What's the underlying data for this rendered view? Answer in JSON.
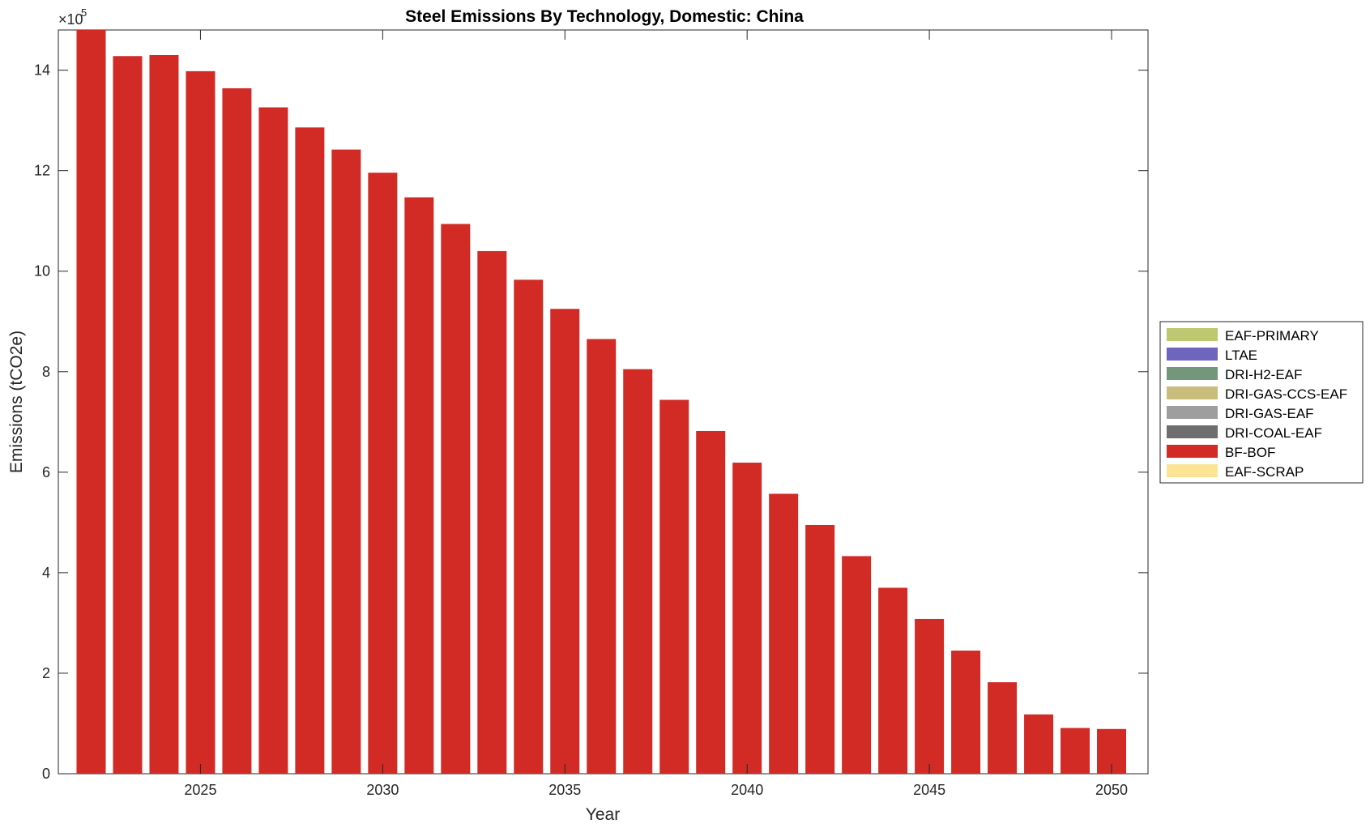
{
  "chart_data": {
    "type": "bar",
    "title": "Steel Emissions By Technology, Domestic: China",
    "xlabel": "Year",
    "ylabel": "Emissions (tCO2e)",
    "y_exponent_label": "×10",
    "y_exponent_power": "5",
    "y_scale_factor": 100000,
    "xlim": [
      2021.1,
      2051
    ],
    "ylim": [
      0,
      1480000
    ],
    "x_ticks": [
      2025,
      2030,
      2035,
      2040,
      2045,
      2050
    ],
    "x_tick_labels": [
      "2025",
      "2030",
      "2035",
      "2040",
      "2045",
      "2050"
    ],
    "y_ticks": [
      0,
      200000,
      400000,
      600000,
      800000,
      1000000,
      1200000,
      1400000
    ],
    "y_tick_labels": [
      "0",
      "2",
      "4",
      "6",
      "8",
      "10",
      "12",
      "14"
    ],
    "grid": false,
    "legend_position": "outside-right",
    "x": [
      2022,
      2023,
      2024,
      2025,
      2026,
      2027,
      2028,
      2029,
      2030,
      2031,
      2032,
      2033,
      2034,
      2035,
      2036,
      2037,
      2038,
      2039,
      2040,
      2041,
      2042,
      2043,
      2044,
      2045,
      2046,
      2047,
      2048,
      2049,
      2050
    ],
    "series": [
      {
        "name": "EAF-PRIMARY",
        "color": "#bdc871",
        "values": [
          0,
          0,
          0,
          0,
          0,
          0,
          0,
          0,
          0,
          0,
          0,
          0,
          0,
          0,
          0,
          0,
          0,
          0,
          0,
          0,
          0,
          0,
          0,
          0,
          0,
          0,
          0,
          0,
          0
        ]
      },
      {
        "name": "LTAE",
        "color": "#6e66be",
        "values": [
          0,
          0,
          0,
          0,
          0,
          0,
          0,
          0,
          0,
          0,
          0,
          0,
          0,
          0,
          0,
          0,
          0,
          0,
          0,
          0,
          0,
          0,
          0,
          0,
          0,
          0,
          0,
          0,
          0
        ]
      },
      {
        "name": "DRI-H2-EAF",
        "color": "#74977b",
        "values": [
          0,
          0,
          0,
          0,
          0,
          0,
          0,
          0,
          0,
          0,
          0,
          0,
          0,
          0,
          0,
          0,
          0,
          0,
          0,
          0,
          0,
          0,
          0,
          0,
          0,
          0,
          0,
          0,
          0
        ]
      },
      {
        "name": "DRI-GAS-CCS-EAF",
        "color": "#c8bd7b",
        "values": [
          0,
          0,
          0,
          0,
          0,
          0,
          0,
          0,
          0,
          0,
          0,
          0,
          0,
          0,
          0,
          0,
          0,
          0,
          0,
          0,
          0,
          0,
          0,
          0,
          0,
          0,
          0,
          0,
          0
        ]
      },
      {
        "name": "DRI-GAS-EAF",
        "color": "#9e9e9e",
        "values": [
          0,
          0,
          0,
          0,
          0,
          0,
          0,
          0,
          0,
          0,
          0,
          0,
          0,
          0,
          0,
          0,
          0,
          0,
          0,
          0,
          0,
          0,
          0,
          0,
          0,
          0,
          0,
          0,
          0
        ]
      },
      {
        "name": "DRI-COAL-EAF",
        "color": "#6e6e6e",
        "values": [
          0,
          0,
          0,
          0,
          0,
          0,
          0,
          0,
          0,
          0,
          0,
          0,
          0,
          0,
          0,
          0,
          0,
          0,
          0,
          0,
          0,
          0,
          0,
          0,
          0,
          0,
          0,
          0,
          0
        ]
      },
      {
        "name": "BF-BOF",
        "color": "#d22a25",
        "values": [
          1480000,
          1428000,
          1430000,
          1398000,
          1364000,
          1326000,
          1286000,
          1242000,
          1196000,
          1147000,
          1094000,
          1040000,
          983000,
          925000,
          865000,
          805000,
          744000,
          682000,
          619000,
          557000,
          495000,
          433000,
          370000,
          308000,
          245000,
          182000,
          118000,
          91000,
          89000
        ]
      },
      {
        "name": "EAF-SCRAP",
        "color": "#fde495",
        "values": [
          0,
          0,
          0,
          0,
          0,
          0,
          0,
          0,
          0,
          0,
          0,
          0,
          0,
          0,
          0,
          0,
          0,
          0,
          0,
          0,
          0,
          0,
          0,
          0,
          0,
          0,
          0,
          0,
          0
        ]
      }
    ]
  }
}
